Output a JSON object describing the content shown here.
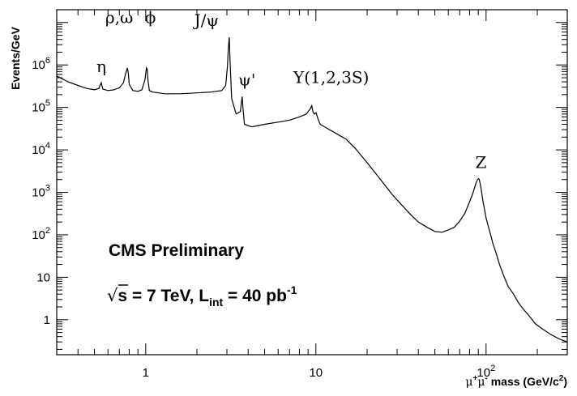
{
  "chart_data": {
    "type": "line",
    "xscale": "log",
    "yscale": "log",
    "xlim": [
      0.3,
      300
    ],
    "ylim": [
      0.15,
      20000000
    ],
    "ylabel": "Events/GeV",
    "xlabel_parts": {
      "mu": "μ",
      "plus": "+",
      "mu2": "μ",
      "minus": "-",
      "rest": " mass (GeV/c",
      "sq": "2",
      "close": ")"
    },
    "x_ticks": [
      {
        "value": 1,
        "label": "1"
      },
      {
        "value": 10,
        "label": "10"
      },
      {
        "value": 100,
        "label_base": "10",
        "label_exp": "2"
      }
    ],
    "y_ticks": [
      {
        "value": 1,
        "label": "1"
      },
      {
        "value": 10,
        "label": "10"
      },
      {
        "value": 100,
        "label_base": "10",
        "label_exp": "2"
      },
      {
        "value": 1000,
        "label_base": "10",
        "label_exp": "3"
      },
      {
        "value": 10000,
        "label_base": "10",
        "label_exp": "4"
      },
      {
        "value": 100000,
        "label_base": "10",
        "label_exp": "5"
      },
      {
        "value": 1000000,
        "label_base": "10",
        "label_exp": "6"
      }
    ],
    "peaks": [
      {
        "label": "η",
        "x": 0.548,
        "y": 370000
      },
      {
        "label": "ρ,ω",
        "x": 0.78,
        "y": 900000
      },
      {
        "label": "ϕ",
        "x": 1.02,
        "y": 900000
      },
      {
        "label": "J/ψ",
        "x": 3.097,
        "y": 4500000
      },
      {
        "label": "ψ'",
        "x": 3.686,
        "y": 180000
      },
      {
        "label": "Υ(1,2,3S)",
        "x": 9.46,
        "y": 100000
      },
      {
        "label": "Z",
        "x": 91.2,
        "y": 2000
      }
    ],
    "annotation": {
      "experiment": "CMS Preliminary",
      "energy_sym": "√",
      "energy_s": "s",
      "energy_rest": " = 7 TeV,  L",
      "lumi_sub": "int",
      "lumi_eq": " = 40 pb",
      "lumi_exp": "-1"
    },
    "series": [
      {
        "x": [
          0.3,
          0.35,
          0.4,
          0.45,
          0.5,
          0.53,
          0.548,
          0.56,
          0.6,
          0.65,
          0.7,
          0.74,
          0.76,
          0.78,
          0.79,
          0.8,
          0.84,
          0.9,
          0.95,
          0.99,
          1.01,
          1.02,
          1.03,
          1.05,
          1.1,
          1.3,
          1.6,
          2.0,
          2.4,
          2.8,
          2.95,
          3.02,
          3.06,
          3.097,
          3.13,
          3.2,
          3.4,
          3.6,
          3.686,
          3.72,
          3.8,
          4.2,
          5.0,
          6.0,
          7.0,
          8.0,
          8.8,
          9.3,
          9.46,
          9.6,
          9.8,
          10.02,
          10.2,
          10.36,
          10.6,
          11.5,
          13,
          15,
          17,
          20,
          24,
          28,
          32,
          36,
          40,
          45,
          50,
          55,
          60,
          65,
          70,
          75,
          80,
          84,
          87,
          89,
          90.5,
          91.2,
          92,
          93.5,
          96,
          100,
          105,
          110,
          115,
          120,
          128,
          135,
          145,
          155,
          165,
          180,
          195,
          215,
          240,
          270,
          300
        ],
        "y": [
          550000,
          400000,
          330000,
          280000,
          260000,
          280000,
          380000,
          270000,
          250000,
          260000,
          290000,
          380000,
          600000,
          850000,
          650000,
          350000,
          250000,
          240000,
          260000,
          450000,
          850000,
          800000,
          450000,
          250000,
          230000,
          210000,
          210000,
          220000,
          230000,
          250000,
          330000,
          900000,
          2500000,
          4500000,
          1200000,
          160000,
          70000,
          80000,
          180000,
          110000,
          40000,
          35000,
          40000,
          45000,
          50000,
          60000,
          70000,
          95000,
          110000,
          80000,
          70000,
          75000,
          60000,
          50000,
          40000,
          33000,
          25000,
          18000,
          11000,
          5000,
          2000,
          900,
          500,
          300,
          200,
          150,
          120,
          115,
          130,
          150,
          210,
          320,
          600,
          1000,
          1600,
          2000,
          2100,
          2000,
          1700,
          1200,
          600,
          250,
          120,
          60,
          35,
          20,
          10,
          6,
          4,
          2.5,
          1.8,
          1.2,
          0.8,
          0.6,
          0.45,
          0.35,
          0.3
        ]
      }
    ]
  }
}
